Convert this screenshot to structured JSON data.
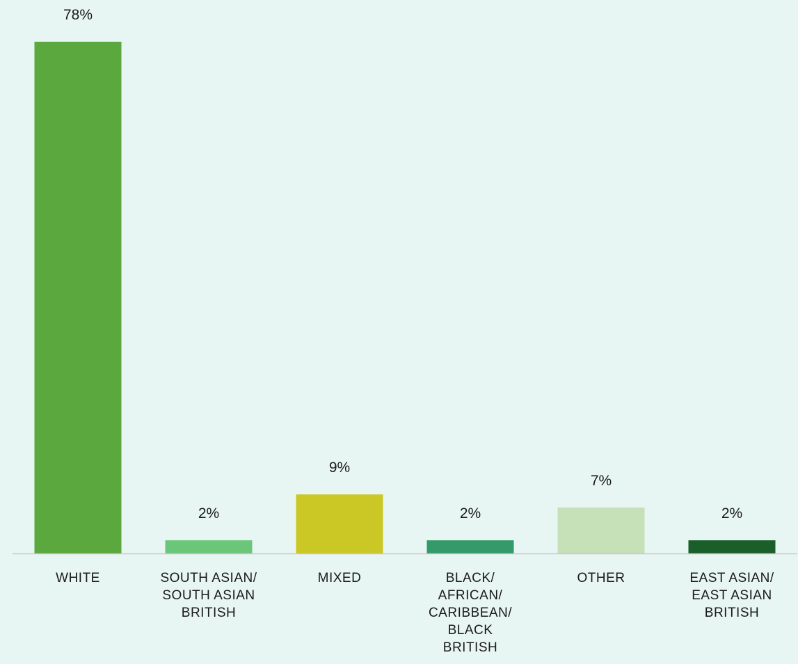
{
  "chart_data": {
    "type": "bar",
    "categories": [
      "WHITE",
      "SOUTH ASIAN/ SOUTH ASIAN BRITISH",
      "MIXED",
      "BLACK/ AFRICAN/ CARIBBEAN/ BLACK BRITISH",
      "OTHER",
      "EAST ASIAN/ EAST ASIAN BRITISH"
    ],
    "category_lines": [
      [
        "WHITE"
      ],
      [
        "SOUTH ASIAN/",
        "SOUTH ASIAN",
        "BRITISH"
      ],
      [
        "MIXED"
      ],
      [
        "BLACK/",
        "AFRICAN/",
        "CARIBBEAN/",
        "BLACK",
        "BRITISH"
      ],
      [
        "OTHER"
      ],
      [
        "EAST ASIAN/",
        "EAST ASIAN",
        "BRITISH"
      ]
    ],
    "values": [
      78,
      2,
      9,
      2,
      7,
      2
    ],
    "data_labels": [
      "78%",
      "2%",
      "9%",
      "2%",
      "7%",
      "2%"
    ],
    "colors": [
      "#5aa83e",
      "#6cc67a",
      "#cbc826",
      "#349a6a",
      "#c6e0b8",
      "#1a5e2a"
    ],
    "axis_color": "#c8c8c8",
    "ylim": [
      0,
      78
    ],
    "grid": false,
    "legend": "none",
    "title": "",
    "xlabel": "",
    "ylabel": ""
  }
}
